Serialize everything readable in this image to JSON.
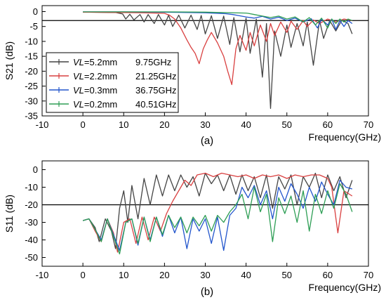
{
  "chart_data": [
    {
      "type": "line",
      "panel_label": "(a)",
      "xlabel": "Frequency(GHz)",
      "ylabel": "S21 (dB)",
      "xlim": [
        -10,
        70
      ],
      "ylim": [
        -35,
        2
      ],
      "xticks": [
        -10,
        0,
        10,
        20,
        30,
        40,
        50,
        60,
        70
      ],
      "yticks": [
        0,
        -5,
        -10,
        -15,
        -20,
        -25,
        -30,
        -35
      ],
      "grid": false,
      "legend_position": "left",
      "reference_lines": [
        -3
      ],
      "series": [
        {
          "name": "VL=5.2mm",
          "name_prefix": "VL",
          "name_suffix": "=5.2mm",
          "freq_label": "9.75GHz",
          "color": "#444444",
          "x": [
            0,
            8,
            9.75,
            10.5,
            11.5,
            12.5,
            14,
            15,
            16,
            17.5,
            18.5,
            20,
            21,
            22,
            23.5,
            25,
            26.5,
            28,
            29,
            30,
            31.5,
            33,
            34.5,
            36,
            37,
            38.5,
            40,
            41,
            42.5,
            44,
            45,
            46,
            47,
            48.5,
            50,
            51,
            52.5,
            54,
            55,
            56.5,
            58,
            59,
            60.5,
            62,
            63.5,
            65,
            66
          ],
          "y": [
            -0.2,
            -0.3,
            -0.8,
            -2.5,
            -0.9,
            -2.8,
            -1.0,
            -3.5,
            -1.0,
            -4.0,
            -1.0,
            -4.5,
            -1.2,
            -5.0,
            -1.2,
            -5.5,
            -1.2,
            -6.0,
            -1.3,
            -7.5,
            -1.4,
            -9.0,
            -1.5,
            -11.0,
            -2.0,
            -13.5,
            -2.2,
            -14.0,
            -2.5,
            -22.0,
            -4.0,
            -32.5,
            -6.5,
            -15.0,
            -4.5,
            -12.0,
            -4.0,
            -11.5,
            -3.5,
            -18.0,
            -3.0,
            -9.0,
            -3.0,
            -6.5,
            -2.8,
            -4.0,
            -7.5
          ]
        },
        {
          "name": "VL=2.2mm",
          "name_prefix": "VL",
          "name_suffix": "=2.2mm",
          "freq_label": "21.25GHz",
          "color": "#d94040",
          "x": [
            0,
            10,
            15,
            20,
            21.25,
            22.5,
            24,
            25.5,
            26.5,
            27.5,
            28.5,
            29.5,
            30.5,
            31.5,
            33,
            34.5,
            35.5,
            36.5,
            37.5,
            38.5,
            40,
            41,
            42,
            43.5,
            45,
            46,
            47,
            48.5,
            50,
            51,
            52.5,
            54,
            55,
            56.5,
            58,
            60,
            62,
            64,
            66
          ],
          "y": [
            -0.2,
            -0.3,
            -0.4,
            -0.6,
            -1.2,
            -2.5,
            -5.5,
            -9.5,
            -12.0,
            -14.0,
            -17.5,
            -12.5,
            -9.5,
            -7.0,
            -10.5,
            -15.0,
            -20.0,
            -24.5,
            -12.5,
            -8.0,
            -13.0,
            -7.0,
            -11.5,
            -4.5,
            -10.0,
            -4.0,
            -8.0,
            -3.5,
            -7.0,
            -3.2,
            -6.0,
            -3.0,
            -5.0,
            -2.8,
            -4.0,
            -2.5,
            -3.5,
            -2.5,
            -3.0
          ]
        },
        {
          "name": "VL=0.3mm",
          "name_prefix": "VL",
          "name_suffix": "=0.3mm",
          "freq_label": "36.75GHz",
          "color": "#2255cc",
          "x": [
            0,
            10,
            20,
            30,
            35,
            36.75,
            38,
            40,
            42,
            44,
            46,
            48,
            50,
            52,
            54,
            56,
            57.5,
            58.5,
            60,
            61,
            62,
            63,
            64,
            65,
            66
          ],
          "y": [
            -0.1,
            -0.1,
            -0.2,
            -0.4,
            -0.7,
            -1.0,
            -1.3,
            -1.8,
            -2.2,
            -1.6,
            -2.5,
            -1.9,
            -3.0,
            -2.2,
            -3.5,
            -2.4,
            -5.5,
            -2.6,
            -4.5,
            -2.5,
            -6.0,
            -3.0,
            -5.0,
            -3.0,
            -4.0
          ]
        },
        {
          "name": "VL=0.2mm",
          "name_prefix": "VL",
          "name_suffix": "=0.2mm",
          "freq_label": "40.51GHz",
          "color": "#2e9e55",
          "x": [
            0,
            10,
            20,
            30,
            40,
            40.51,
            42,
            44,
            46,
            48,
            50,
            52,
            54,
            55.5,
            57,
            58.5,
            60,
            61,
            62,
            63,
            64,
            65,
            66
          ],
          "y": [
            -0.1,
            -0.1,
            -0.1,
            -0.2,
            -0.5,
            -0.6,
            -1.0,
            -1.5,
            -2.0,
            -1.5,
            -2.5,
            -1.8,
            -3.5,
            -2.0,
            -4.5,
            -2.2,
            -5.5,
            -2.5,
            -4.0,
            -2.5,
            -3.5,
            -2.5,
            -3.0
          ]
        }
      ]
    },
    {
      "type": "line",
      "panel_label": "(b)",
      "xlabel": "Frequency(GHz)",
      "ylabel": "S11 (dB)",
      "xlim": [
        -10,
        70
      ],
      "ylim": [
        -55,
        5
      ],
      "xticks": [
        -10,
        0,
        10,
        20,
        30,
        40,
        50,
        60,
        70
      ],
      "yticks": [
        0,
        -10,
        -20,
        -30,
        -40,
        -50
      ],
      "grid": false,
      "reference_lines": [
        -20
      ],
      "series": [
        {
          "name": "VL=5.2mm",
          "color": "#444444",
          "x": [
            0,
            1.5,
            3,
            4,
            5.5,
            7,
            8,
            9,
            10,
            11,
            12,
            13.5,
            15,
            16.5,
            18,
            19.5,
            21,
            22.5,
            24,
            25.5,
            27,
            28.5,
            30,
            31.5,
            33,
            34.5,
            36,
            37.5,
            39,
            40.5,
            42,
            43.5,
            45,
            46.5,
            48,
            49.5,
            51,
            52.5,
            54,
            55.5,
            57,
            58.5,
            60,
            61.5,
            63,
            64.5,
            66
          ],
          "y": [
            -29,
            -28,
            -33,
            -41,
            -28,
            -35,
            -45,
            -22,
            -12,
            -30,
            -9,
            -28,
            -5,
            -20,
            -3,
            -15,
            -3,
            -12,
            -3,
            -10,
            -4,
            -15,
            -2,
            -8,
            -3,
            -12,
            -3,
            -14,
            -3,
            -12,
            -4,
            -16,
            -3,
            -22,
            -4,
            -11,
            -3,
            -20,
            -4,
            -10,
            -2,
            -16,
            -3,
            -12,
            -4,
            -16,
            -6
          ]
        },
        {
          "name": "VL=2.2mm",
          "color": "#d94040",
          "x": [
            0,
            1.5,
            3,
            4.5,
            6,
            7.5,
            8.5,
            10,
            11.5,
            13,
            14.5,
            16,
            17.5,
            19,
            20.5,
            22,
            23.5,
            25,
            26.5,
            28,
            30,
            32,
            34,
            36,
            38,
            40,
            42,
            44,
            46,
            48,
            50,
            52,
            54,
            56,
            58,
            60,
            61,
            62.5,
            64,
            66
          ],
          "y": [
            -29,
            -28,
            -35,
            -41,
            -28,
            -36,
            -47,
            -30,
            -28,
            -42,
            -27,
            -40,
            -27,
            -35,
            -25,
            -18,
            -12,
            -6,
            -9,
            -3,
            -2,
            -4,
            -2,
            -3,
            -4,
            -3,
            -5,
            -3,
            -4,
            -3,
            -5,
            -3,
            -4,
            -3,
            -3,
            -5,
            -10,
            -36,
            -12,
            -15
          ]
        },
        {
          "name": "VL=0.3mm",
          "color": "#2255cc",
          "x": [
            0,
            1.5,
            3,
            4.5,
            6,
            7.5,
            9,
            10.5,
            12,
            13.5,
            15,
            16.5,
            18,
            19.5,
            21,
            22.5,
            24,
            25.5,
            27,
            28.5,
            30,
            31.5,
            33,
            34.5,
            36,
            37.5,
            39,
            40.5,
            42,
            43.5,
            45,
            46.5,
            48,
            49.5,
            51,
            52.5,
            54,
            55.5,
            57,
            58.5,
            60,
            61.5,
            63,
            64.5,
            66
          ],
          "y": [
            -29,
            -28,
            -34,
            -40,
            -28,
            -37,
            -46,
            -30,
            -28,
            -43,
            -27,
            -40,
            -27,
            -38,
            -26,
            -36,
            -27,
            -45,
            -28,
            -35,
            -28,
            -42,
            -27,
            -46,
            -26,
            -22,
            -10,
            -16,
            -9,
            -20,
            -12,
            -28,
            -10,
            -18,
            -8,
            -14,
            -22,
            -10,
            -18,
            -7,
            -14,
            -20,
            -6,
            -10,
            -11
          ]
        },
        {
          "name": "VL=0.2mm",
          "color": "#2e9e55",
          "x": [
            0,
            1.5,
            3,
            4.5,
            6,
            7.5,
            9,
            10.5,
            12,
            13.5,
            15,
            16.5,
            18,
            19.5,
            21,
            22.5,
            24,
            25.5,
            27,
            28.5,
            30,
            31.5,
            33,
            34.5,
            36,
            37.5,
            39,
            40.5,
            42,
            43.5,
            45,
            46.5,
            48,
            49.5,
            51,
            52.5,
            54,
            55.5,
            57,
            58.5,
            60,
            61.5,
            63,
            64.5,
            66
          ],
          "y": [
            -29,
            -28,
            -34,
            -41,
            -28,
            -38,
            -48,
            -30,
            -28,
            -42,
            -27,
            -41,
            -27,
            -37,
            -26,
            -33,
            -27,
            -36,
            -27,
            -32,
            -26,
            -35,
            -26,
            -30,
            -24,
            -20,
            -14,
            -28,
            -10,
            -24,
            -14,
            -41,
            -16,
            -25,
            -15,
            -30,
            -12,
            -35,
            -14,
            -25,
            -12,
            -22,
            -8,
            -14,
            -24
          ]
        }
      ]
    }
  ]
}
